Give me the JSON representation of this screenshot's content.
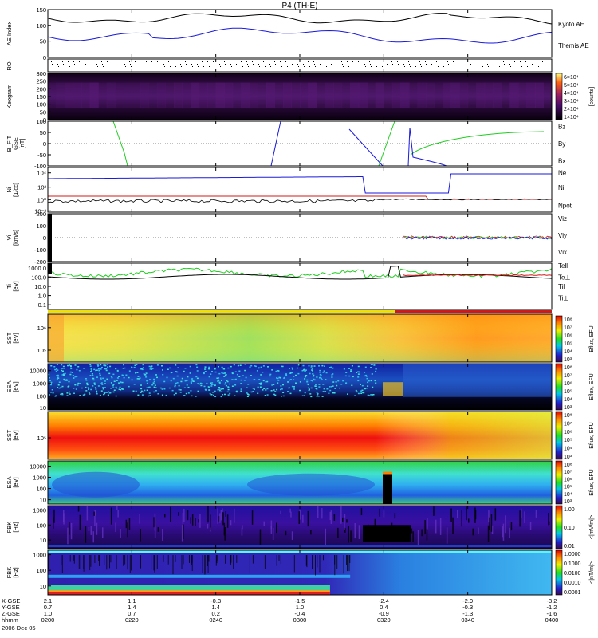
{
  "title": "P4 (TH-E)",
  "colors": {
    "black": "#000000",
    "blue": "#1a1adc",
    "red": "#d01818",
    "green": "#22cc22",
    "bar_yellow": "#f0e000",
    "bar_red": "#d01818"
  },
  "chart_data": {
    "type": "line",
    "time_labels": [
      "0200",
      "0220",
      "0240",
      "0300",
      "0320",
      "0340",
      "0400"
    ],
    "date_label": "2006 Dec 05",
    "footer_rows": [
      {
        "name": "X-GSE",
        "values": [
          "2.1",
          "1.1",
          "-0.3",
          "-1.5",
          "-2.4",
          "-2.9",
          "-3.2"
        ]
      },
      {
        "name": "Y-GSE",
        "values": [
          "0.7",
          "1.4",
          "1.4",
          "1.0",
          "0.4",
          "-0.3",
          "-1.2"
        ]
      },
      {
        "name": "Z-GSE",
        "values": [
          "1.0",
          "0.7",
          "0.2",
          "-0.4",
          "-0.9",
          "-1.3",
          "-1.6"
        ]
      },
      {
        "name": "hhmm",
        "values": []
      }
    ],
    "panels": [
      {
        "id": "ae",
        "ylabel": [
          "AE Index"
        ],
        "yticks": [
          "150",
          "100",
          "50",
          "0"
        ],
        "right_labels": [
          {
            "text": "Kyoto AE",
            "color": "#1a1adc"
          },
          {
            "text": "Themis AE",
            "color": "#000000"
          }
        ]
      },
      {
        "id": "roi",
        "ylabel": [
          "ROI"
        ],
        "yticks": [],
        "right_labels": []
      },
      {
        "id": "keogram",
        "ylabel": [
          "Keogram"
        ],
        "yticks": [
          "300",
          "250",
          "200",
          "150",
          "100",
          "50",
          "0"
        ],
        "colorbar": {
          "labels": [
            "6×10⁴",
            "5×10⁴",
            "4×10⁴",
            "3×10⁴",
            "2×10⁴",
            "1×10⁴"
          ],
          "title": "[counts]"
        }
      },
      {
        "id": "bfit",
        "ylabel": [
          "B_FIT",
          "GSE",
          "[nT]"
        ],
        "yticks": [
          "100",
          "50",
          "0",
          "-50",
          "-100"
        ],
        "right_labels": [
          {
            "text": "Bz",
            "color": "#d01818"
          },
          {
            "text": "By",
            "color": "#22cc22"
          },
          {
            "text": "Bx",
            "color": "#1a1adc"
          }
        ]
      },
      {
        "id": "ni",
        "ylabel": [
          "Ni",
          "[1/cc]"
        ],
        "yticks": [
          "10⁴",
          "10²",
          "10⁰",
          "10⁻²"
        ],
        "right_labels": [
          {
            "text": "Ne",
            "color": "#d01818"
          },
          {
            "text": "Ni",
            "color": "#000000"
          },
          {
            "text": "Npot",
            "color": "#1a1adc"
          }
        ]
      },
      {
        "id": "vi",
        "ylabel": [
          "Vi",
          "[km/s]"
        ],
        "yticks": [
          "200",
          "100",
          "0",
          "-100",
          "-200"
        ],
        "right_labels": [
          {
            "text": "Viz",
            "color": "#d01818"
          },
          {
            "text": "Viy",
            "color": "#22cc22"
          },
          {
            "text": "Vix",
            "color": "#1a1adc"
          }
        ]
      },
      {
        "id": "ti",
        "ylabel": [
          "Ti",
          "[eV]"
        ],
        "yticks": [
          "1000.0",
          "100.0",
          "10.0",
          "1.0",
          "0.1"
        ],
        "right_labels": [
          {
            "text": "Tell",
            "color": "#000000"
          },
          {
            "text": "Te⊥",
            "color": "#d01818"
          },
          {
            "text": "Til",
            "color": "#22cc22"
          },
          {
            "text": "Ti⊥",
            "color": "#1a1adc"
          }
        ]
      },
      {
        "id": "sst_e",
        "ylabel": [
          "SST",
          "[eV]"
        ],
        "yticks": [
          "10⁶",
          "10⁵"
        ],
        "colorbar_label": "Eflux, EFU"
      },
      {
        "id": "esa_e",
        "ylabel": [
          "ESA",
          "[eV]"
        ],
        "yticks": [
          "10000",
          "1000",
          "100",
          "10"
        ],
        "colorbar_label": "Eflux, EFU"
      },
      {
        "id": "sst_i",
        "ylabel": [
          "SST",
          "[eV]"
        ],
        "yticks": [
          "10⁵"
        ],
        "colorbar_label": "Eflux, EFU"
      },
      {
        "id": "esa_i",
        "ylabel": [
          "ESA",
          "[eV]"
        ],
        "yticks": [
          "10000",
          "1000",
          "100",
          "10"
        ],
        "colorbar_label": "Eflux, EFU"
      },
      {
        "id": "fbk_e",
        "ylabel": [
          "FBK",
          "[Hz]"
        ],
        "yticks": [
          "1000",
          "100",
          "10"
        ],
        "colorbar": {
          "labels": [
            "1.00",
            "0.10",
            "0.01"
          ],
          "title": "<|mV/m|>"
        }
      },
      {
        "id": "fbk_b",
        "ylabel": [
          "FBK",
          "[Hz]"
        ],
        "yticks": [
          "1000",
          "100",
          "10"
        ],
        "colorbar": {
          "labels": [
            "1.0000",
            "0.1000",
            "0.0100",
            "0.0010",
            "0.0001"
          ],
          "title": "<|nT/m|>"
        }
      }
    ],
    "sst_colorbar_ticks": [
      "10⁸",
      "10⁷",
      "10⁶",
      "10⁵",
      "10⁴",
      "10³"
    ],
    "esa_colorbar_ticks": [
      "10⁸",
      "10⁷",
      "10⁶",
      "10⁵",
      "10⁴",
      "10³"
    ]
  }
}
